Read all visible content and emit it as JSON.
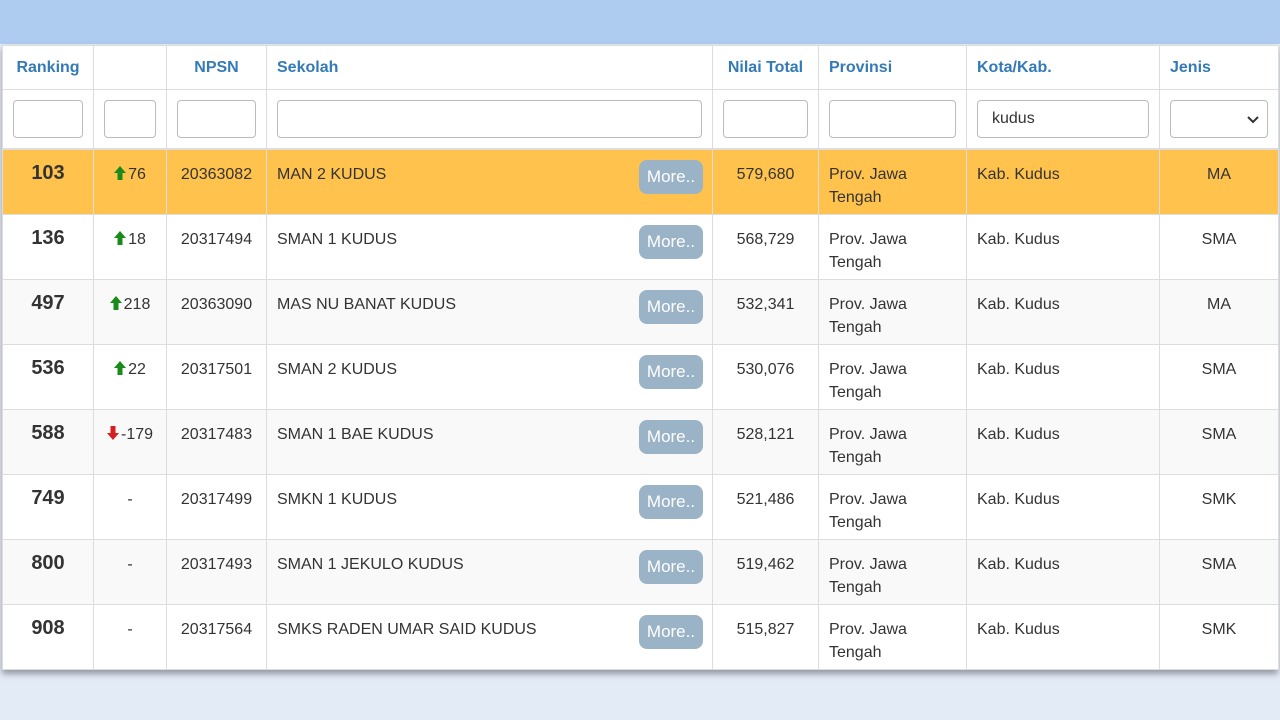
{
  "headers": [
    "Ranking",
    "",
    "NPSN",
    "Sekolah",
    "Nilai Total",
    "Provinsi",
    "Kota/Kab.",
    "Jenis"
  ],
  "filter_city": "kudus",
  "more_label": "More..",
  "rows": [
    {
      "ranking": "103",
      "trend": "up",
      "change": "76",
      "npsn": "20363082",
      "sekolah": "MAN 2 KUDUS",
      "nilai": "579,680",
      "provinsi": "Prov. Jawa Tengah",
      "kota": "Kab. Kudus",
      "jenis": "MA",
      "highlight": true
    },
    {
      "ranking": "136",
      "trend": "up",
      "change": "18",
      "npsn": "20317494",
      "sekolah": "SMAN 1 KUDUS",
      "nilai": "568,729",
      "provinsi": "Prov. Jawa Tengah",
      "kota": "Kab. Kudus",
      "jenis": "SMA",
      "highlight": false
    },
    {
      "ranking": "497",
      "trend": "up",
      "change": "218",
      "npsn": "20363090",
      "sekolah": "MAS NU BANAT KUDUS",
      "nilai": "532,341",
      "provinsi": "Prov. Jawa Tengah",
      "kota": "Kab. Kudus",
      "jenis": "MA",
      "highlight": false
    },
    {
      "ranking": "536",
      "trend": "up",
      "change": "22",
      "npsn": "20317501",
      "sekolah": "SMAN 2 KUDUS",
      "nilai": "530,076",
      "provinsi": "Prov. Jawa Tengah",
      "kota": "Kab. Kudus",
      "jenis": "SMA",
      "highlight": false
    },
    {
      "ranking": "588",
      "trend": "down",
      "change": "-179",
      "npsn": "20317483",
      "sekolah": "SMAN 1 BAE KUDUS",
      "nilai": "528,121",
      "provinsi": "Prov. Jawa Tengah",
      "kota": "Kab. Kudus",
      "jenis": "SMA",
      "highlight": false
    },
    {
      "ranking": "749",
      "trend": null,
      "change": "-",
      "npsn": "20317499",
      "sekolah": "SMKN 1 KUDUS",
      "nilai": "521,486",
      "provinsi": "Prov. Jawa Tengah",
      "kota": "Kab. Kudus",
      "jenis": "SMK",
      "highlight": false
    },
    {
      "ranking": "800",
      "trend": null,
      "change": "-",
      "npsn": "20317493",
      "sekolah": "SMAN 1 JEKULO KUDUS",
      "nilai": "519,462",
      "provinsi": "Prov. Jawa Tengah",
      "kota": "Kab. Kudus",
      "jenis": "SMA",
      "highlight": false
    },
    {
      "ranking": "908",
      "trend": null,
      "change": "-",
      "npsn": "20317564",
      "sekolah": "SMKS RADEN UMAR SAID KUDUS",
      "nilai": "515,827",
      "provinsi": "Prov. Jawa Tengah",
      "kota": "Kab. Kudus",
      "jenis": "SMK",
      "highlight": false
    }
  ]
}
